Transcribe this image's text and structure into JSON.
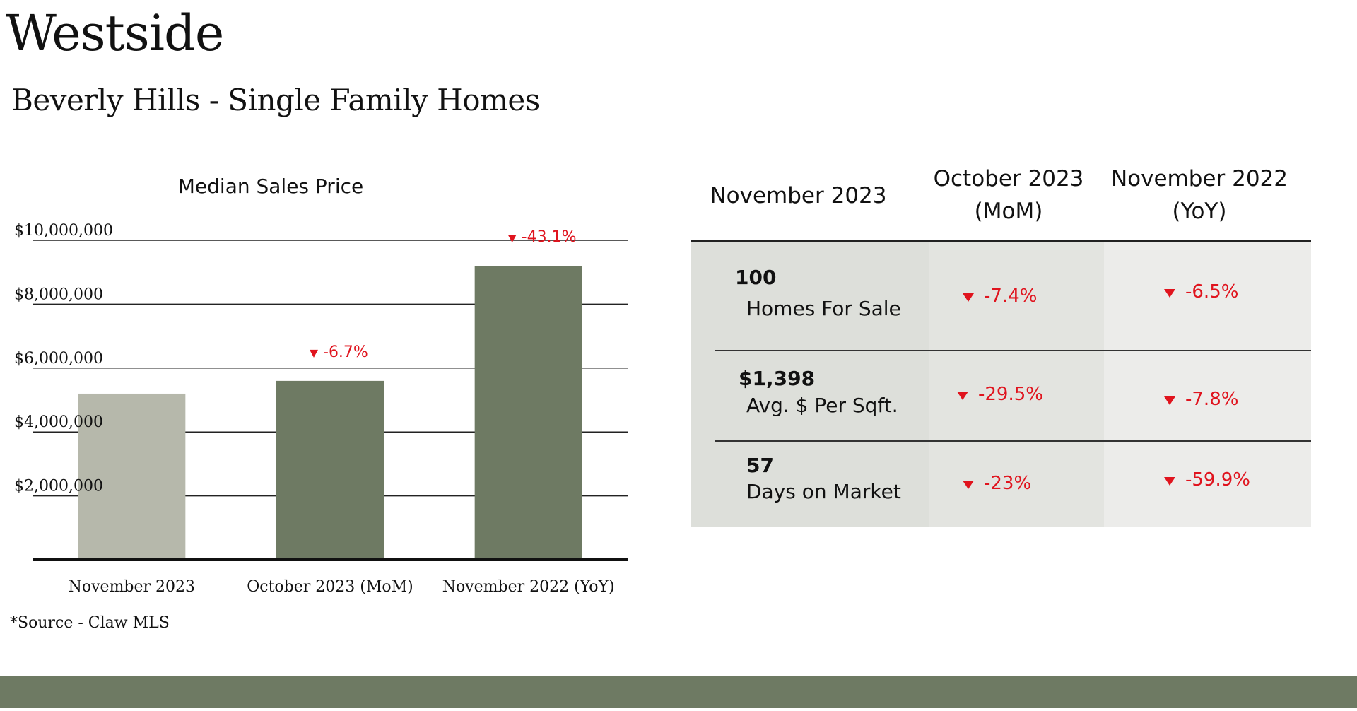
{
  "header": {
    "region": "Westside",
    "subtitle": "Beverly Hills - Single Family Homes"
  },
  "chart_data": {
    "type": "bar",
    "title": "Median Sales Price",
    "categories": [
      "November 2023",
      "October 2023 (MoM)",
      "November 2022 (YoY)"
    ],
    "values": [
      5200000,
      5600000,
      9200000
    ],
    "changes": [
      "",
      "-6.7%",
      "-43.1%"
    ],
    "y_ticks": [
      "$2,000,000",
      "$4,000,000",
      "$6,000,000",
      "$8,000,000",
      "$10,000,000"
    ],
    "y_tick_values": [
      2000000,
      4000000,
      6000000,
      8000000,
      10000000
    ],
    "ylim": [
      0,
      10000000
    ],
    "xlabel": "",
    "ylabel": "",
    "grid": true,
    "colors": [
      "#b6b8ab",
      "#6e7a63",
      "#6e7a63"
    ],
    "change_color": "#e0141e"
  },
  "table": {
    "headers": [
      "November 2023",
      "October 2023\n(MoM)",
      "November 2022\n(YoY)"
    ],
    "rows": [
      {
        "value": "100",
        "label": "Homes For Sale",
        "mom": "-7.4%",
        "yoy": "-6.5%"
      },
      {
        "value": "$1,398",
        "label": "Avg. $ Per Sqft.",
        "mom": "-29.5%",
        "yoy": "-7.8%"
      },
      {
        "value": "57",
        "label": "Days on Market",
        "mom": "-23%",
        "yoy": "-59.9%"
      }
    ]
  },
  "footer": {
    "source": "*Source - Claw MLS"
  },
  "colors": {
    "brand_green": "#6e7a63",
    "light_bar": "#b6b8ab",
    "negative": "#e0141e"
  }
}
